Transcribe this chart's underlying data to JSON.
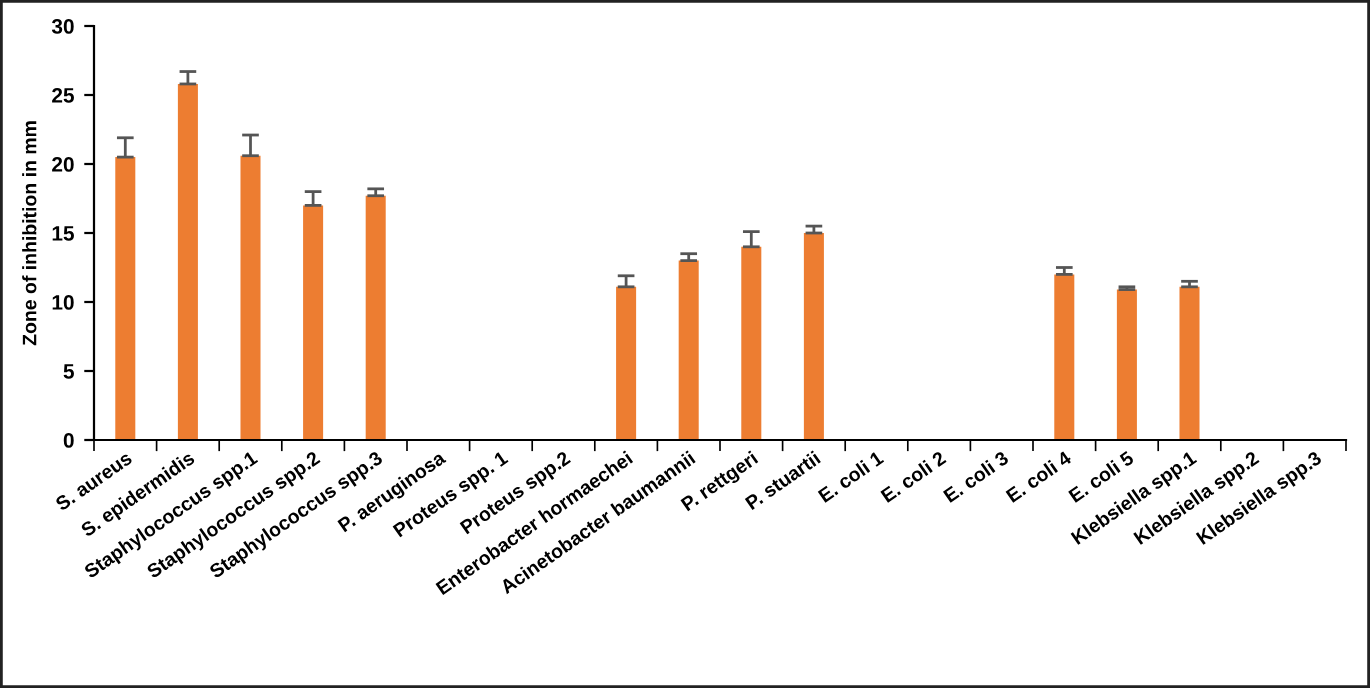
{
  "chart_data": {
    "type": "bar",
    "ylabel": "Zone of inhibition in mm",
    "categories": [
      "S. aureus",
      "S. epidermidis",
      "Staphylococcus spp.1",
      "Staphylococcus spp.2",
      "Staphylococcus spp.3",
      "P. aeruginosa",
      "Proteus spp. 1",
      "Proteus spp.2",
      "Enterobacter hormaechei",
      "Acinetobacter baumannii",
      "P. rettgeri",
      "P. stuartii",
      "E. coli 1",
      "E. coli 2",
      "E. coli 3",
      "E. coli 4",
      "E. coli 5",
      "Klebsiella spp.1",
      "Klebsiella spp.2",
      "Klebsiella spp.3"
    ],
    "series": [
      {
        "color": "#ed7d31",
        "values": [
          20.5,
          25.8,
          20.6,
          17.0,
          17.7,
          0,
          0,
          0,
          11.1,
          13.0,
          14.0,
          15.0,
          0,
          0,
          0,
          12.0,
          10.9,
          11.1,
          0,
          0
        ],
        "errors": [
          1.4,
          0.9,
          1.5,
          1.0,
          0.5,
          null,
          null,
          null,
          0.8,
          0.5,
          1.1,
          0.5,
          null,
          null,
          null,
          0.5,
          0.2,
          0.4,
          null,
          null
        ]
      }
    ],
    "ylim": [
      0,
      30
    ],
    "yticks": [
      0,
      5,
      10,
      15,
      20,
      25,
      30
    ],
    "grid": false,
    "legend": false
  }
}
